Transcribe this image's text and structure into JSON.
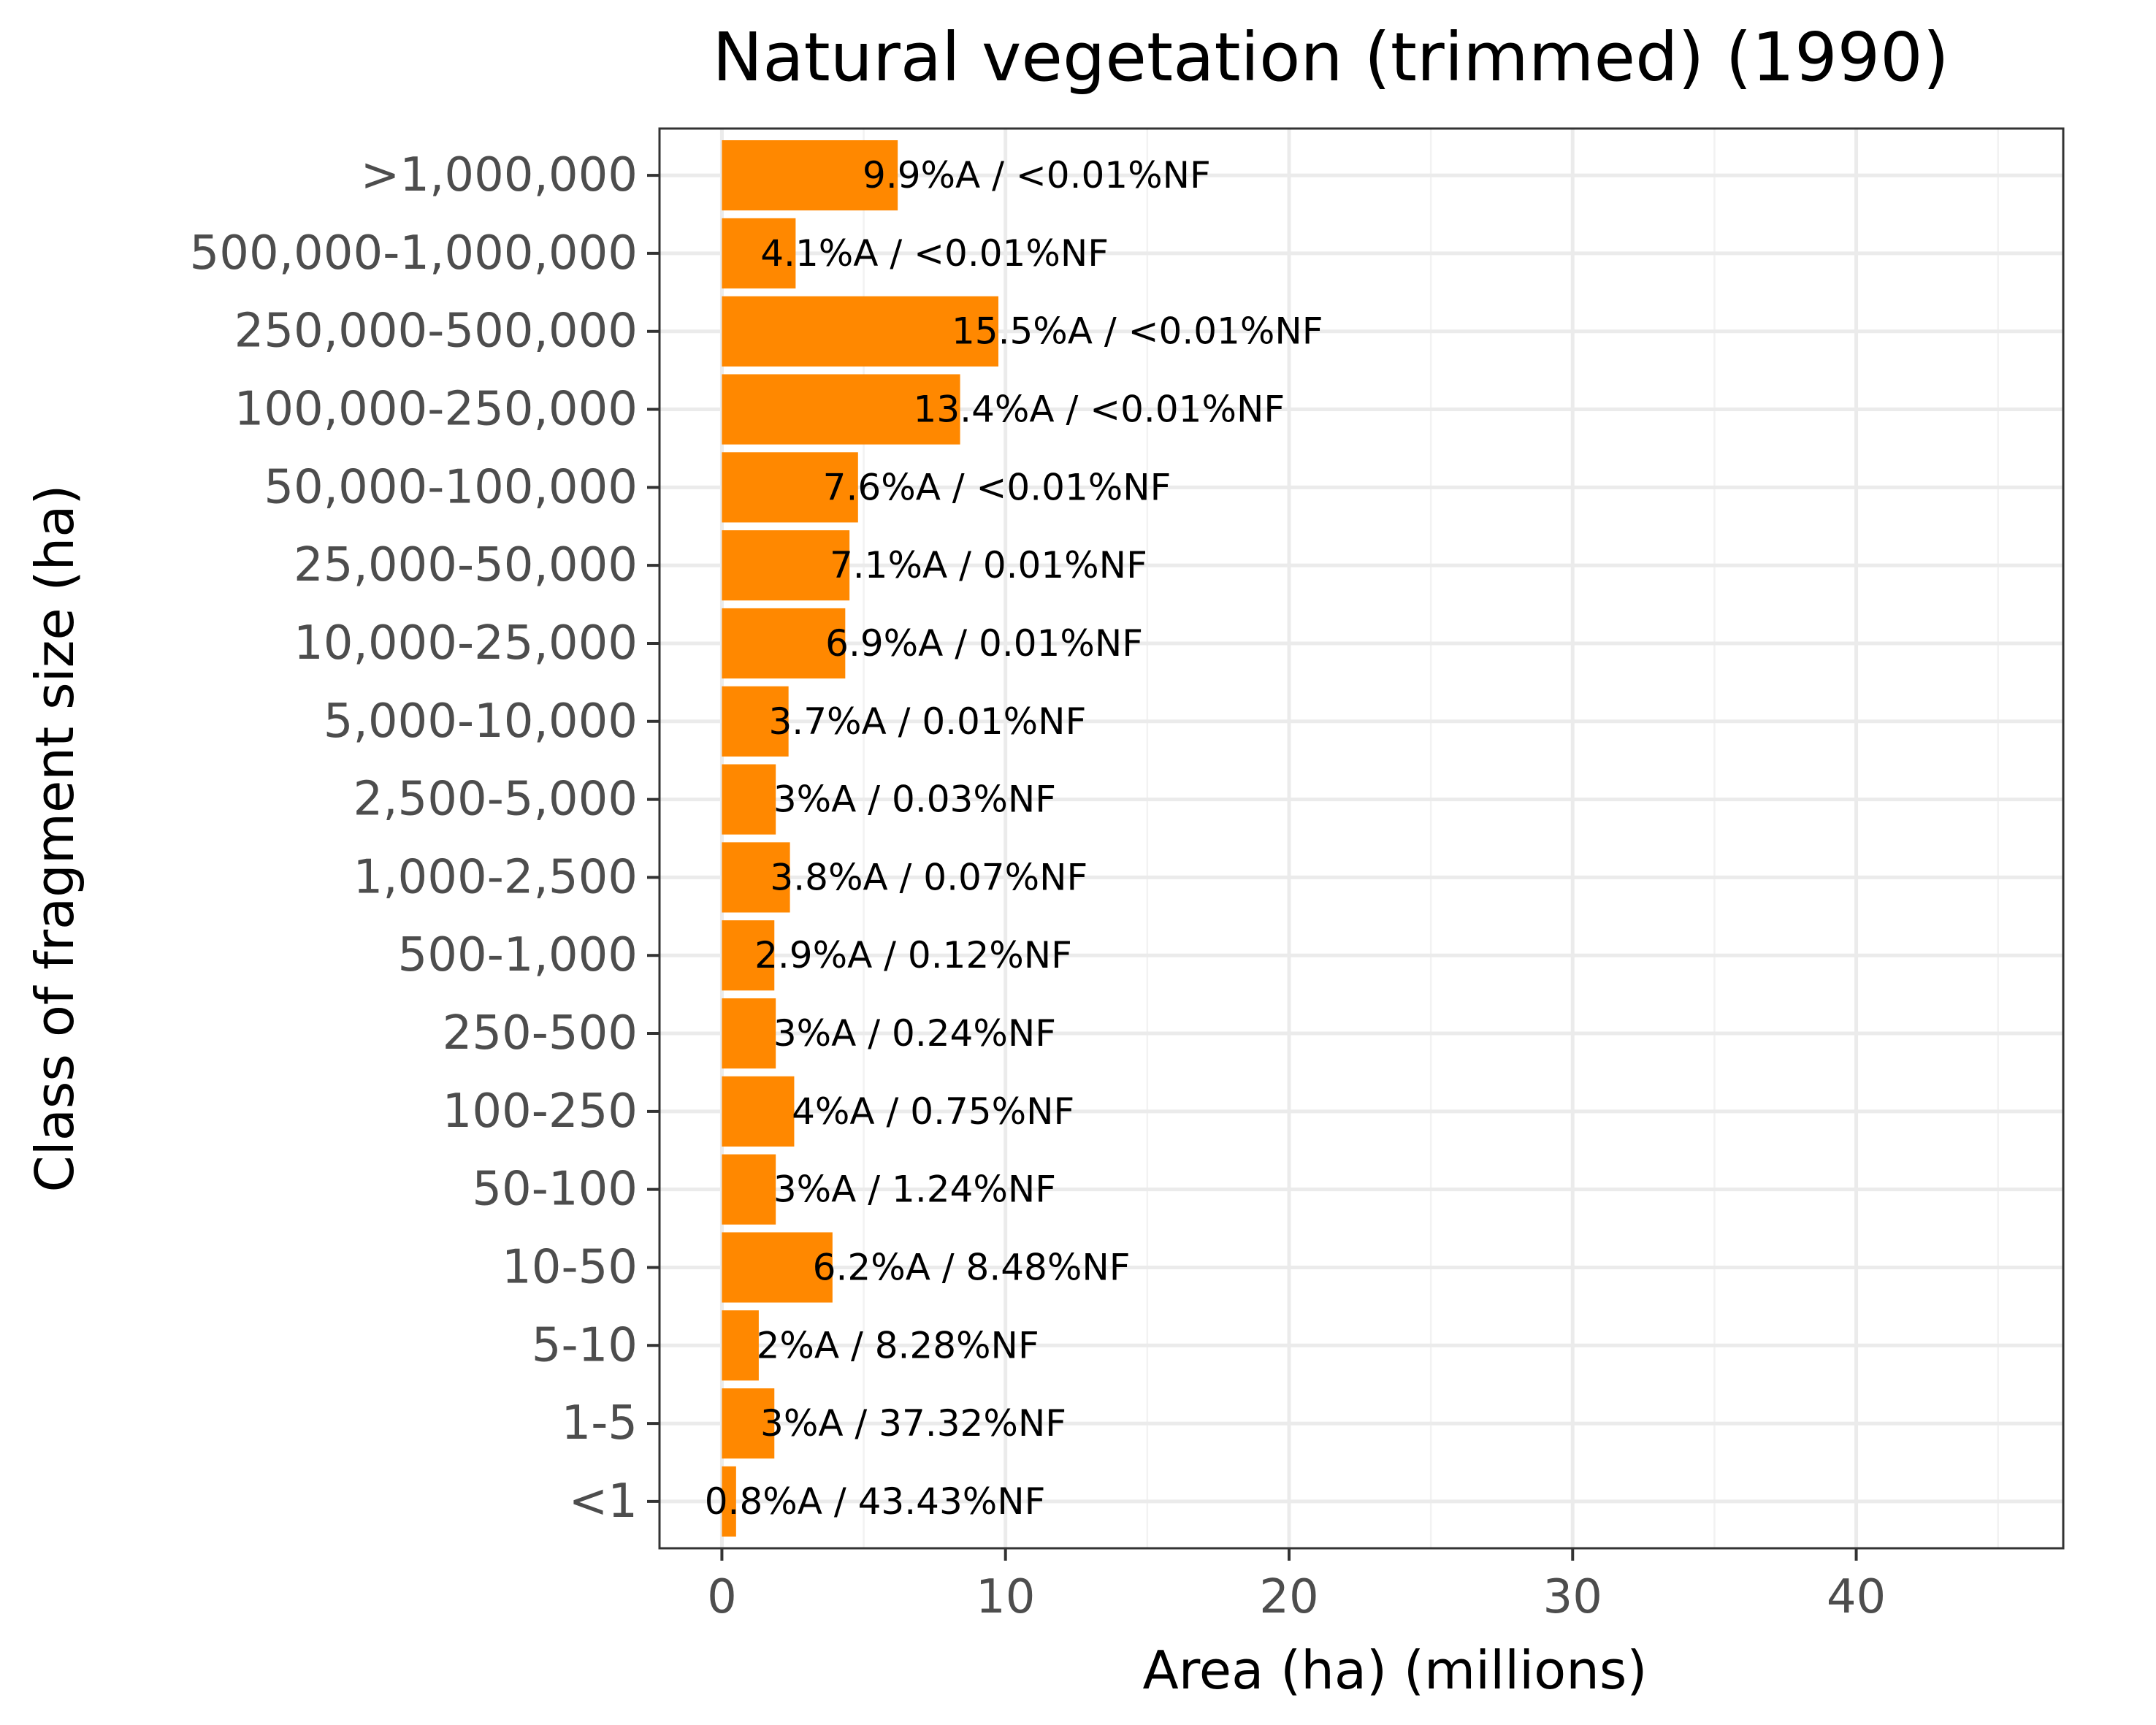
{
  "chart_data": {
    "type": "bar",
    "orientation": "horizontal",
    "title": "Natural vegetation (trimmed) (1990)",
    "xlabel": "Area (ha) (millions)",
    "ylabel": "Class of fragment size (ha)",
    "xlim": [
      -2.2,
      47.3
    ],
    "xticks": [
      0,
      10,
      20,
      30,
      40
    ],
    "grid": true,
    "bar_color": "#ff8800",
    "categories": [
      ">1,000,000",
      "500,000-1,000,000",
      "250,000-500,000",
      "100,000-250,000",
      "50,000-100,000",
      "25,000-50,000",
      "10,000-25,000",
      "5,000-10,000",
      "2,500-5,000",
      "1,000-2,500",
      "500-1,000",
      "250-500",
      "100-250",
      "50-100",
      "10-50",
      "5-10",
      "1-5",
      "<1"
    ],
    "values": [
      6.2,
      2.6,
      9.75,
      8.4,
      4.8,
      4.5,
      4.35,
      2.35,
      1.9,
      2.4,
      1.85,
      1.9,
      2.55,
      1.9,
      3.9,
      1.3,
      1.85,
      0.5
    ],
    "labels": [
      "9.9%A / <0.01%NF",
      "4.1%A / <0.01%NF",
      "15.5%A / <0.01%NF",
      "13.4%A / <0.01%NF",
      "7.6%A / <0.01%NF",
      "7.1%A / 0.01%NF",
      "6.9%A / 0.01%NF",
      "3.7%A / 0.01%NF",
      "3%A / 0.03%NF",
      "3.8%A / 0.07%NF",
      "2.9%A / 0.12%NF",
      "3%A / 0.24%NF",
      "4%A / 0.75%NF",
      "3%A / 1.24%NF",
      "6.2%A / 8.48%NF",
      "2%A / 8.28%NF",
      "3%A / 37.32%NF",
      "0.8%A / 43.43%NF"
    ]
  }
}
